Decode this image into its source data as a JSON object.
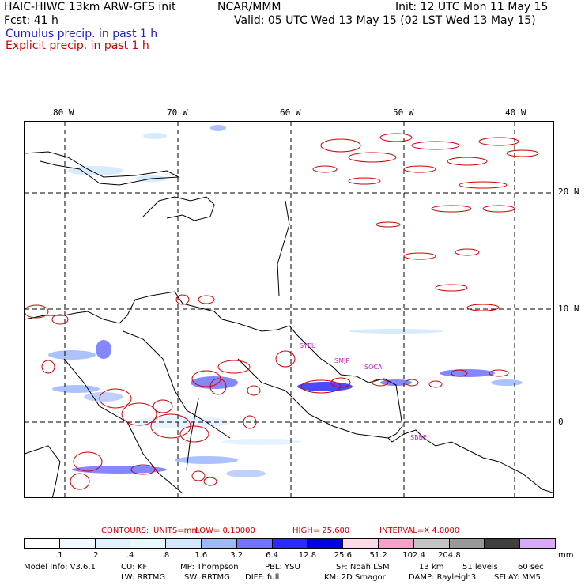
{
  "header": {
    "model_title": "HAIC-HIWC 13km ARW-GFS init",
    "org": "NCAR/MMM",
    "init": "Init: 12 UTC Mon 11 May 15",
    "forecast": "Fcst:   41 h",
    "valid": "Valid: 05 UTC Wed 13 May 15 (02 LST Wed 13 May 15)",
    "field_1": "Cumulus precip. in past 1 h",
    "field_2": "Explicit precip. in past 1 h"
  },
  "colors": {
    "cumulus": "#2020c0",
    "explicit": "#d00000",
    "stations": "#c020c0"
  },
  "map": {
    "lon_labels": [
      "80 W",
      "70 W",
      "60 W",
      "50 W",
      "40 W"
    ],
    "lat_labels": [
      "20 N",
      "10 N",
      "0"
    ],
    "stations": [
      "SYEU",
      "SMJP",
      "SOCA",
      "SBBE"
    ]
  },
  "contours": {
    "label": "CONTOURS:",
    "units": "UNITS=mm",
    "low": "LOW=  0.10000",
    "high": "HIGH=  25.600",
    "interval": "INTERVAL=X  4.0000"
  },
  "colorbar": {
    "labels": [
      ".1",
      ".2",
      ".4",
      ".8",
      "1.6",
      "3.2",
      "6.4",
      "12.8",
      "25.6",
      "51.2",
      "102.4",
      "204.8"
    ],
    "unit": "mm",
    "colors": [
      "#ffffff",
      "#f2f8ff",
      "#e2f1ff",
      "#e6fafd",
      "#d1e8ff",
      "#9db8ff",
      "#6f73ff",
      "#2a2aff",
      "#0000e8",
      "#ffd9e8",
      "#ff9ec8",
      "#c4c4c4",
      "#999999",
      "#3f3f3f",
      "#d8a9ff"
    ]
  },
  "model_info": {
    "line1": [
      "Model Info: V3.6.1",
      "CU: KF",
      "MP: Thompson",
      "PBL: YSU",
      "SF: Noah LSM",
      "13 km",
      "51 levels",
      "60 sec"
    ],
    "line2": [
      "LW: RRTMG",
      "SW: RRTMG",
      "DIFF: full",
      "KM: 2D Smagor",
      "DAMP: Rayleigh3",
      "SFLAY: MM5"
    ]
  }
}
